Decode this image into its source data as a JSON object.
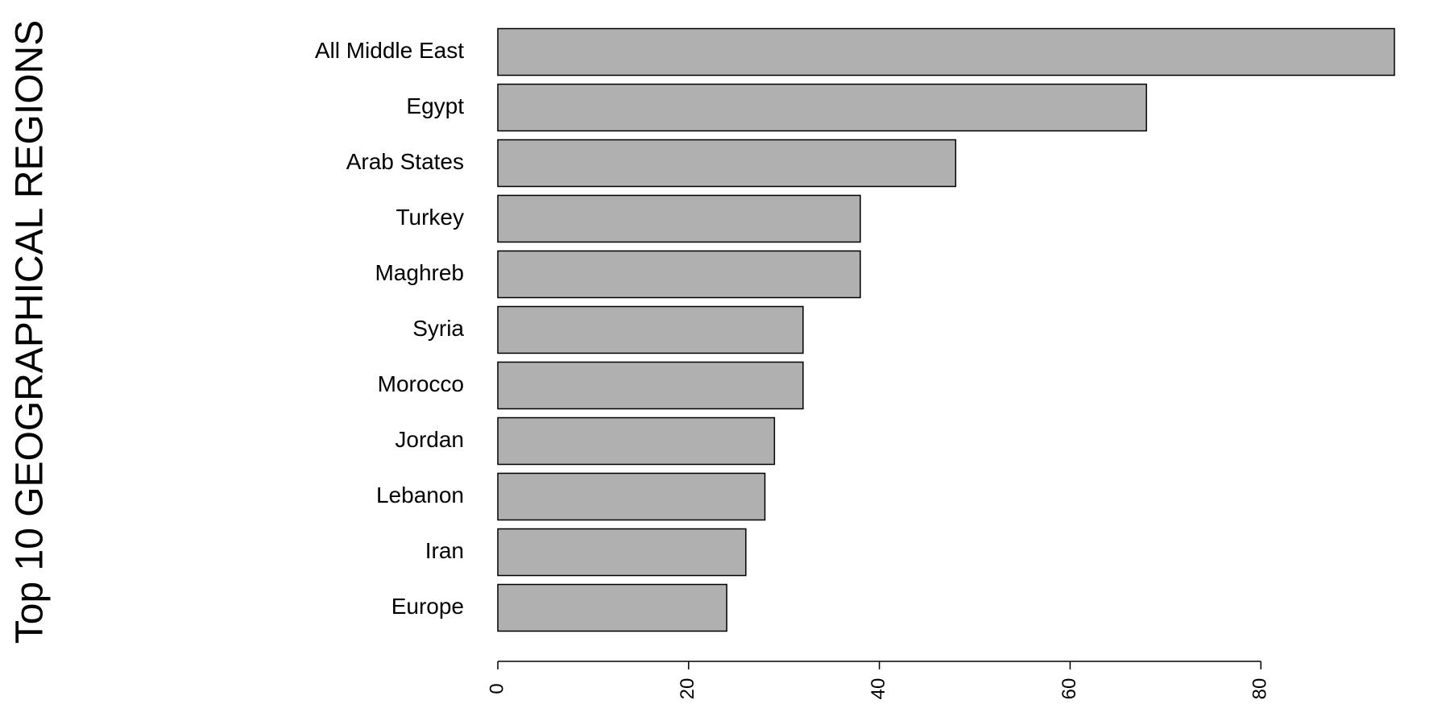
{
  "chart_data": {
    "type": "barh",
    "ylabel": "Top 10 GEOGRAPHICAL REGIONS",
    "categories": [
      "All Middle East",
      "Egypt",
      "Arab States",
      "Turkey",
      "Maghreb",
      "Syria",
      "Morocco",
      "Jordan",
      "Lebanon",
      "Iran",
      "Europe"
    ],
    "values": [
      94,
      68,
      48,
      38,
      38,
      32,
      32,
      29,
      28,
      26,
      24
    ],
    "color": "#b0b0b0",
    "xlim": [
      0,
      94
    ],
    "xticks": [
      0,
      20,
      40,
      60,
      80
    ],
    "grid": false
  }
}
